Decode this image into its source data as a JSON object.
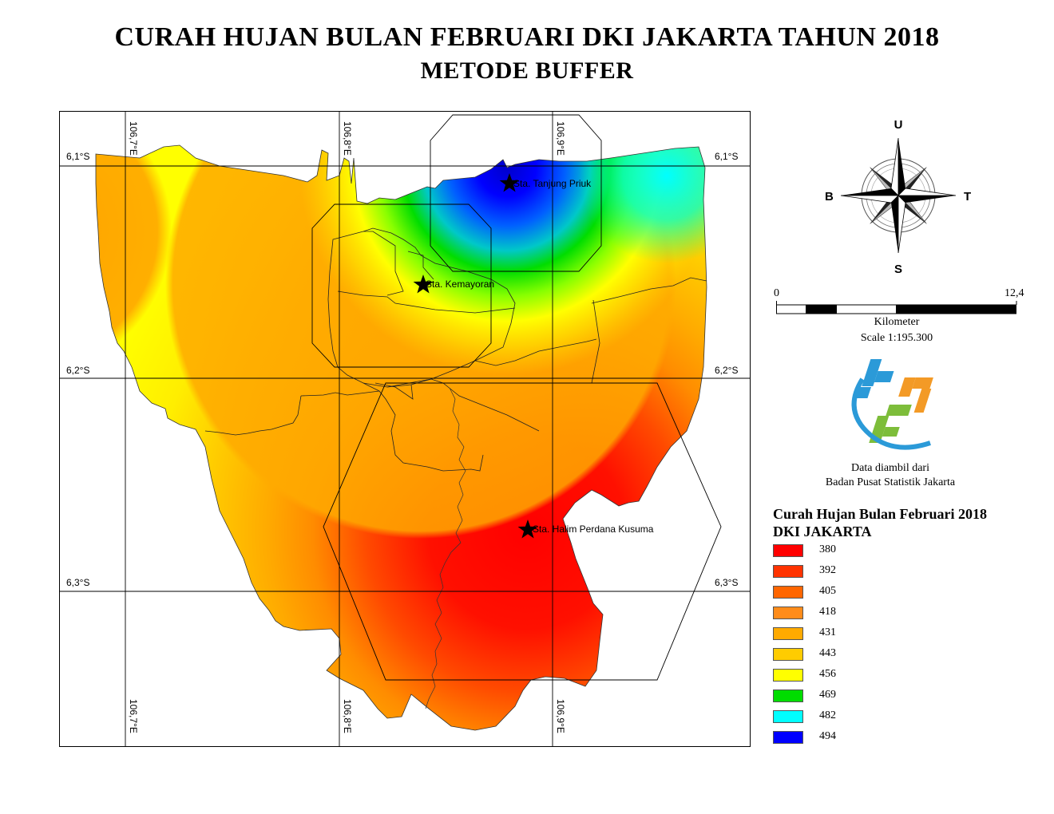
{
  "title": "CURAH HUJAN BULAN FEBRUARI DKI JAKARTA TAHUN 2018",
  "subtitle": "METODE BUFFER",
  "map": {
    "grid_lat_labels": [
      "6,1°S",
      "6,2°S",
      "6,3°S"
    ],
    "grid_lon_labels": [
      "106,7°E",
      "106,8°E",
      "106,9°E"
    ],
    "stations": [
      {
        "name": "Sta. Tanjung Priuk"
      },
      {
        "name": "Sta. Kemayoran"
      },
      {
        "name": "Sta. Halim Perdana Kusuma"
      }
    ]
  },
  "compass": {
    "north": "U",
    "south": "S",
    "east": "T",
    "west": "B"
  },
  "scale": {
    "start": "0",
    "end": "12,4",
    "unit": "Kilometer",
    "ratio": "Scale 1:195.300"
  },
  "source": {
    "line1": "Data diambil dari",
    "line2": "Badan Pusat Statistik Jakarta"
  },
  "legend": {
    "title_line1": "Curah Hujan Bulan Februari 2018",
    "title_line2": "DKI JAKARTA",
    "items": [
      {
        "label": "380",
        "color": "#ff0000"
      },
      {
        "label": "392",
        "color": "#ff3300"
      },
      {
        "label": "405",
        "color": "#ff6600"
      },
      {
        "label": "418",
        "color": "#ff8c1a"
      },
      {
        "label": "431",
        "color": "#ffaa00"
      },
      {
        "label": "443",
        "color": "#ffcc00"
      },
      {
        "label": "456",
        "color": "#ffff00"
      },
      {
        "label": "469",
        "color": "#00dd00"
      },
      {
        "label": "482",
        "color": "#00ffff"
      },
      {
        "label": "494",
        "color": "#0000ff"
      }
    ]
  }
}
